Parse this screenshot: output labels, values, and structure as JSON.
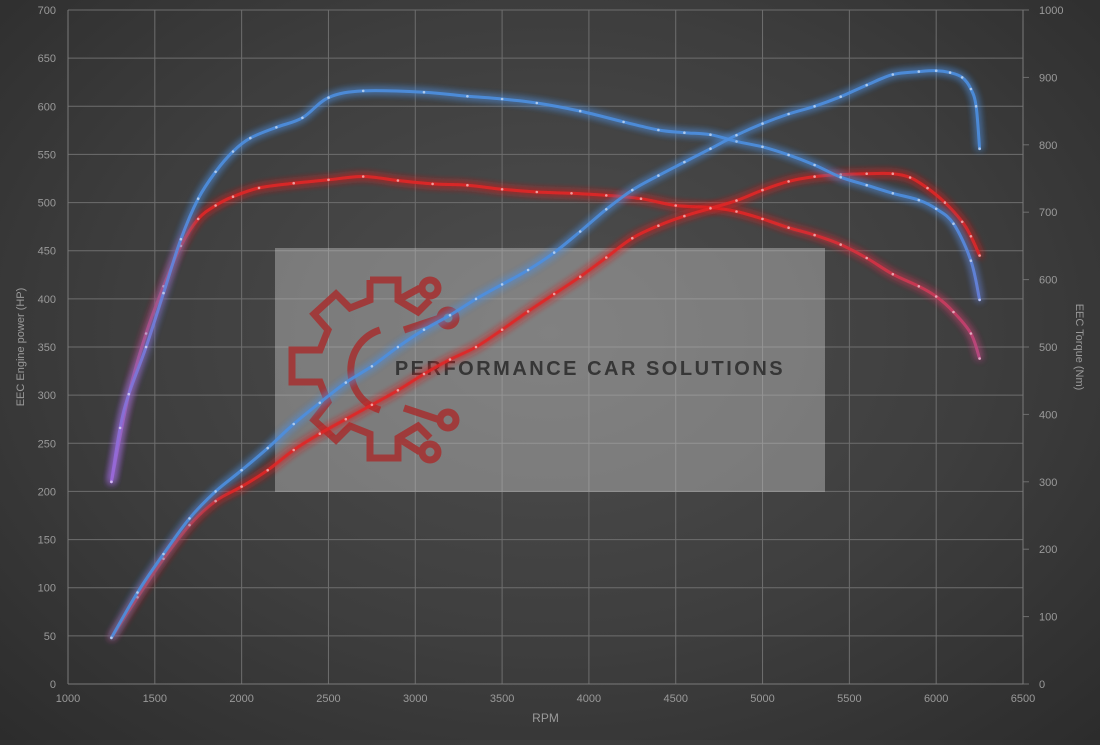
{
  "watermark": {
    "brand": "PERFORMANCE CAR SOLUTIONS"
  },
  "chart_data": {
    "type": "line",
    "xlabel": "RPM",
    "ylabel_left": "EEC Engine power (HP)",
    "ylabel_right": "EEC Torque (Nm)",
    "xlim": [
      1000,
      6500
    ],
    "ylim_left": [
      0,
      700
    ],
    "ylim_right": [
      0,
      1000
    ],
    "x_ticks": [
      1000,
      1500,
      2000,
      2500,
      3000,
      3500,
      4000,
      4500,
      5000,
      5500,
      6000,
      6500
    ],
    "y_ticks_left": [
      0,
      50,
      100,
      150,
      200,
      250,
      300,
      350,
      400,
      450,
      500,
      550,
      600,
      650,
      700
    ],
    "y_ticks_right": [
      0,
      100,
      200,
      300,
      400,
      500,
      600,
      700,
      800,
      900,
      1000
    ],
    "grid": true,
    "legend": "none",
    "colors": {
      "tuned": "#4d8fe0",
      "stock": "#e02828",
      "glow_low": "#9a68d8"
    },
    "series": [
      {
        "key": "power_tuned",
        "axis": "left",
        "color": "#4d8fe0",
        "points": [
          [
            1250,
            48
          ],
          [
            1400,
            95
          ],
          [
            1550,
            135
          ],
          [
            1700,
            172
          ],
          [
            1850,
            200
          ],
          [
            2000,
            222
          ],
          [
            2150,
            245
          ],
          [
            2300,
            270
          ],
          [
            2450,
            292
          ],
          [
            2600,
            313
          ],
          [
            2750,
            330
          ],
          [
            2900,
            350
          ],
          [
            3050,
            368
          ],
          [
            3200,
            383
          ],
          [
            3350,
            400
          ],
          [
            3500,
            415
          ],
          [
            3650,
            430
          ],
          [
            3800,
            448
          ],
          [
            3950,
            470
          ],
          [
            4100,
            493
          ],
          [
            4250,
            513
          ],
          [
            4400,
            528
          ],
          [
            4550,
            542
          ],
          [
            4700,
            556
          ],
          [
            4850,
            570
          ],
          [
            5000,
            582
          ],
          [
            5150,
            592
          ],
          [
            5300,
            600
          ],
          [
            5450,
            610
          ],
          [
            5600,
            622
          ],
          [
            5750,
            633
          ],
          [
            5900,
            636
          ],
          [
            6000,
            637
          ],
          [
            6080,
            635
          ],
          [
            6150,
            630
          ],
          [
            6200,
            618
          ],
          [
            6230,
            600
          ],
          [
            6250,
            556
          ]
        ]
      },
      {
        "key": "power_stock",
        "axis": "left",
        "color": "#e02828",
        "points": [
          [
            1250,
            48
          ],
          [
            1400,
            90
          ],
          [
            1550,
            130
          ],
          [
            1700,
            165
          ],
          [
            1850,
            190
          ],
          [
            2000,
            205
          ],
          [
            2150,
            222
          ],
          [
            2300,
            243
          ],
          [
            2450,
            260
          ],
          [
            2600,
            275
          ],
          [
            2750,
            290
          ],
          [
            2900,
            305
          ],
          [
            3050,
            322
          ],
          [
            3200,
            337
          ],
          [
            3350,
            350
          ],
          [
            3500,
            368
          ],
          [
            3650,
            387
          ],
          [
            3800,
            405
          ],
          [
            3950,
            423
          ],
          [
            4100,
            443
          ],
          [
            4250,
            463
          ],
          [
            4400,
            476
          ],
          [
            4550,
            486
          ],
          [
            4700,
            494
          ],
          [
            4850,
            502
          ],
          [
            5000,
            513
          ],
          [
            5150,
            522
          ],
          [
            5300,
            527
          ],
          [
            5450,
            529
          ],
          [
            5600,
            530
          ],
          [
            5750,
            530
          ],
          [
            5850,
            526
          ],
          [
            5950,
            515
          ],
          [
            6050,
            500
          ],
          [
            6150,
            480
          ],
          [
            6200,
            465
          ],
          [
            6250,
            445
          ]
        ]
      },
      {
        "key": "torque_tuned",
        "axis": "right",
        "color": "#4d8fe0",
        "points": [
          [
            1250,
            300
          ],
          [
            1300,
            380
          ],
          [
            1350,
            430
          ],
          [
            1450,
            500
          ],
          [
            1550,
            580
          ],
          [
            1650,
            660
          ],
          [
            1750,
            720
          ],
          [
            1850,
            760
          ],
          [
            1950,
            790
          ],
          [
            2050,
            810
          ],
          [
            2200,
            826
          ],
          [
            2350,
            840
          ],
          [
            2500,
            870
          ],
          [
            2700,
            880
          ],
          [
            3050,
            878
          ],
          [
            3300,
            872
          ],
          [
            3500,
            868
          ],
          [
            3700,
            862
          ],
          [
            3950,
            850
          ],
          [
            4200,
            834
          ],
          [
            4400,
            822
          ],
          [
            4550,
            818
          ],
          [
            4700,
            815
          ],
          [
            4850,
            805
          ],
          [
            5000,
            797
          ],
          [
            5150,
            785
          ],
          [
            5300,
            770
          ],
          [
            5450,
            752
          ],
          [
            5600,
            740
          ],
          [
            5750,
            728
          ],
          [
            5900,
            718
          ],
          [
            6000,
            705
          ],
          [
            6100,
            683
          ],
          [
            6200,
            628
          ],
          [
            6250,
            570
          ]
        ]
      },
      {
        "key": "torque_stock",
        "axis": "right",
        "color": "#e02828",
        "points": [
          [
            1250,
            300
          ],
          [
            1350,
            430
          ],
          [
            1450,
            520
          ],
          [
            1550,
            590
          ],
          [
            1650,
            650
          ],
          [
            1750,
            690
          ],
          [
            1850,
            710
          ],
          [
            1950,
            723
          ],
          [
            2100,
            736
          ],
          [
            2300,
            743
          ],
          [
            2500,
            748
          ],
          [
            2700,
            753
          ],
          [
            2900,
            747
          ],
          [
            3100,
            742
          ],
          [
            3300,
            740
          ],
          [
            3500,
            734
          ],
          [
            3700,
            730
          ],
          [
            3900,
            728
          ],
          [
            4100,
            725
          ],
          [
            4300,
            720
          ],
          [
            4500,
            710
          ],
          [
            4700,
            707
          ],
          [
            4850,
            701
          ],
          [
            5000,
            690
          ],
          [
            5150,
            677
          ],
          [
            5300,
            666
          ],
          [
            5450,
            652
          ],
          [
            5600,
            632
          ],
          [
            5750,
            608
          ],
          [
            5900,
            590
          ],
          [
            6000,
            575
          ],
          [
            6100,
            552
          ],
          [
            6200,
            520
          ],
          [
            6250,
            483
          ]
        ]
      }
    ]
  }
}
